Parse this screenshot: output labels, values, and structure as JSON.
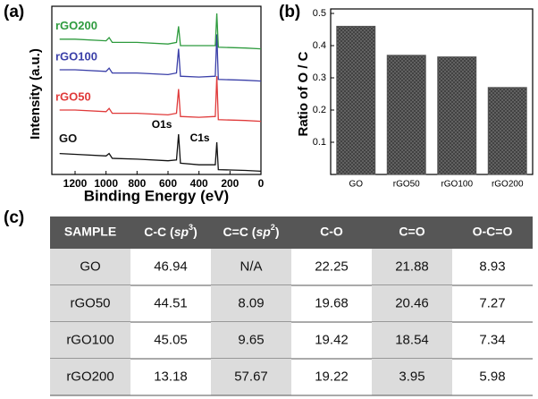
{
  "chart_data": [
    {
      "type": "line",
      "label": "(a)",
      "xlabel": "Binding Energy (eV)",
      "ylabel": "Intensity (a.u.)",
      "x": [
        1300,
        1200,
        1000,
        980,
        960,
        800,
        600,
        545,
        532,
        520,
        400,
        295,
        285,
        275,
        100,
        0
      ],
      "xlim": [
        1350,
        0
      ],
      "xticks": [
        1200,
        1000,
        800,
        600,
        400,
        200,
        0
      ],
      "ylim": [
        0,
        100
      ],
      "series": [
        {
          "name": "GO",
          "color": "#111111",
          "values": [
            13,
            12.5,
            11.5,
            13,
            10,
            9.5,
            8.5,
            9,
            25,
            7,
            6,
            6,
            20,
            3,
            2.5,
            2
          ]
        },
        {
          "name": "rGO50",
          "color": "#e03a3a",
          "values": [
            40,
            40,
            39,
            41,
            38,
            38,
            37,
            38,
            53,
            36,
            35.5,
            36,
            61,
            34,
            33.5,
            33
          ]
        },
        {
          "name": "rGO100",
          "color": "#3a3fa8",
          "values": [
            65,
            65,
            64,
            66,
            63,
            63,
            62,
            63,
            78,
            61,
            60.5,
            61,
            87,
            59,
            58.5,
            58
          ]
        },
        {
          "name": "rGO200",
          "color": "#2e9b3e",
          "values": [
            84,
            84,
            83,
            85,
            82,
            82,
            81,
            82,
            92,
            80,
            80,
            80,
            100,
            79,
            78.5,
            78
          ]
        }
      ],
      "annotations": [
        "O1s",
        "C1s"
      ]
    },
    {
      "type": "bar",
      "label": "(b)",
      "ylabel": "Ratio of O / C",
      "categories": [
        "GO",
        "rGO50",
        "rGO100",
        "rGO200"
      ],
      "values": [
        0.46,
        0.37,
        0.365,
        0.27
      ],
      "color": "#555555",
      "ylim": [
        0,
        0.5
      ],
      "yticks": [
        0.1,
        0.2,
        0.3,
        0.4,
        0.5
      ]
    }
  ],
  "table": {
    "label": "(c)",
    "header": [
      "SAMPLE",
      [
        "C-C (",
        "sp",
        "3",
        ")"
      ],
      [
        "C=C (",
        "sp",
        "2",
        ")"
      ],
      "C-O",
      "C=O",
      "O-C=O"
    ],
    "rows": [
      [
        "GO",
        46.94,
        "N/A",
        22.25,
        21.88,
        8.93
      ],
      [
        "rGO50",
        44.51,
        8.09,
        19.68,
        20.46,
        7.27
      ],
      [
        "rGO100",
        45.05,
        9.65,
        19.42,
        18.54,
        7.34
      ],
      [
        "rGO200",
        13.18,
        57.67,
        19.22,
        3.95,
        5.98
      ]
    ]
  }
}
